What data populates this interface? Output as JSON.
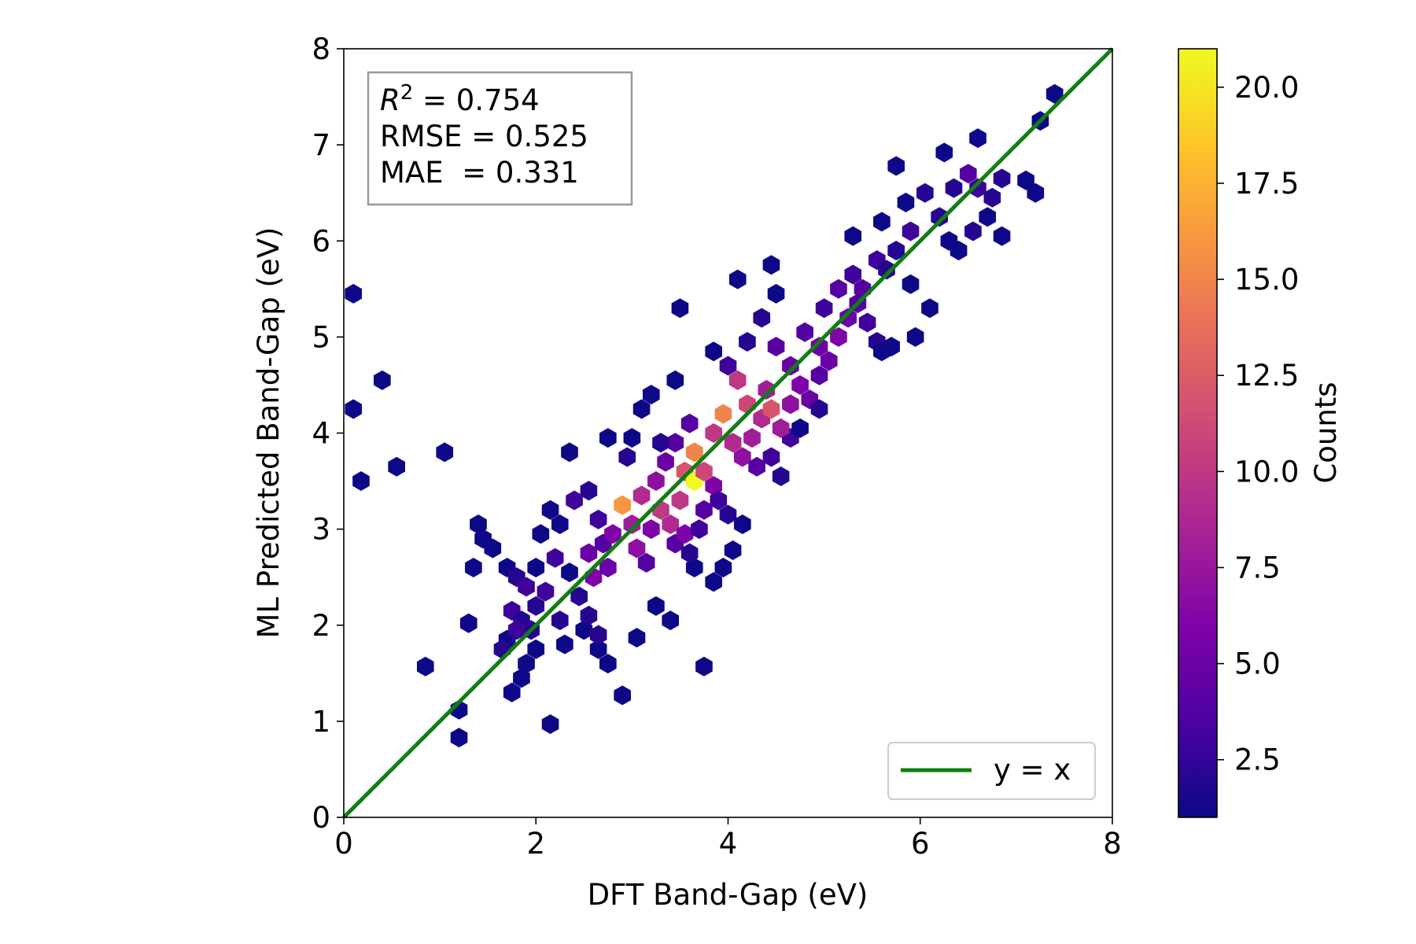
{
  "chart_data": {
    "type": "hexbin",
    "xlabel": "DFT Band-Gap (eV)",
    "ylabel": "ML Predicted Band-Gap (eV)",
    "xlim": [
      0,
      8
    ],
    "ylim": [
      0,
      8
    ],
    "xticks": [
      "0",
      "2",
      "4",
      "6",
      "8"
    ],
    "yticks": [
      "0",
      "1",
      "2",
      "3",
      "4",
      "5",
      "6",
      "7",
      "8"
    ],
    "stats": {
      "r2_symbol": "R",
      "r2_exp": "2",
      "r2_value": " = 0.754",
      "rmse": "RMSE = 0.525",
      "mae": "MAE  = 0.331"
    },
    "legend": {
      "label": "y = x",
      "color": "#0f7f10",
      "placement": "lower-right"
    },
    "reference_line": {
      "from": [
        0,
        0
      ],
      "to": [
        8,
        8
      ]
    },
    "colorbar": {
      "label": "Counts",
      "min": 1,
      "max": 21,
      "ticks": [
        "2.5",
        "5.0",
        "7.5",
        "10.0",
        "12.5",
        "15.0",
        "17.5",
        "20.0"
      ],
      "tick_values": [
        2.5,
        5.0,
        7.5,
        10.0,
        12.5,
        15.0,
        17.5,
        20.0
      ],
      "colormap": "plasma"
    },
    "hexbins": [
      [
        0.1,
        5.45,
        1
      ],
      [
        0.1,
        4.25,
        1
      ],
      [
        0.18,
        3.5,
        1
      ],
      [
        0.4,
        4.55,
        1
      ],
      [
        0.55,
        3.65,
        1
      ],
      [
        0.85,
        1.57,
        1
      ],
      [
        1.05,
        3.8,
        1
      ],
      [
        1.2,
        1.12,
        1
      ],
      [
        1.2,
        0.83,
        1
      ],
      [
        2.15,
        0.97,
        1
      ],
      [
        1.3,
        2.02,
        1
      ],
      [
        1.35,
        2.6,
        1
      ],
      [
        1.4,
        3.05,
        1
      ],
      [
        1.45,
        2.9,
        1
      ],
      [
        1.55,
        2.8,
        1
      ],
      [
        1.7,
        2.6,
        1
      ],
      [
        1.8,
        2.5,
        2
      ],
      [
        1.9,
        2.4,
        3
      ],
      [
        2.0,
        2.2,
        2
      ],
      [
        1.75,
        2.15,
        3
      ],
      [
        1.85,
        2.05,
        2
      ],
      [
        1.95,
        1.95,
        2
      ],
      [
        1.7,
        1.85,
        1
      ],
      [
        1.75,
        1.3,
        1
      ],
      [
        1.85,
        1.45,
        1
      ],
      [
        1.9,
        1.6,
        1
      ],
      [
        2.0,
        2.6,
        1
      ],
      [
        2.05,
        2.95,
        1
      ],
      [
        2.15,
        3.2,
        1
      ],
      [
        2.25,
        3.05,
        1
      ],
      [
        2.35,
        2.55,
        1
      ],
      [
        2.45,
        2.3,
        2
      ],
      [
        2.5,
        1.95,
        1
      ],
      [
        2.65,
        1.75,
        1
      ],
      [
        2.75,
        1.6,
        1
      ],
      [
        2.9,
        1.27,
        1
      ],
      [
        3.05,
        1.87,
        1
      ],
      [
        3.75,
        1.57,
        1
      ],
      [
        3.85,
        2.45,
        1
      ],
      [
        4.05,
        2.78,
        1
      ],
      [
        3.65,
        2.6,
        1
      ],
      [
        3.25,
        2.2,
        1
      ],
      [
        3.4,
        2.05,
        1
      ],
      [
        2.35,
        3.8,
        1
      ],
      [
        2.55,
        3.4,
        2
      ],
      [
        2.65,
        3.1,
        3
      ],
      [
        2.7,
        2.85,
        4
      ],
      [
        2.55,
        2.75,
        5
      ],
      [
        2.6,
        2.5,
        6
      ],
      [
        2.75,
        2.6,
        5
      ],
      [
        2.8,
        2.95,
        6
      ],
      [
        2.9,
        3.25,
        16
      ],
      [
        3.0,
        3.05,
        8
      ],
      [
        3.05,
        2.8,
        7
      ],
      [
        3.15,
        2.65,
        4
      ],
      [
        3.2,
        3.0,
        6
      ],
      [
        3.1,
        3.35,
        9
      ],
      [
        3.25,
        3.5,
        7
      ],
      [
        3.3,
        3.2,
        10
      ],
      [
        3.4,
        3.05,
        9
      ],
      [
        3.5,
        3.3,
        10
      ],
      [
        3.45,
        2.85,
        4
      ],
      [
        3.55,
        2.95,
        6
      ],
      [
        3.35,
        3.7,
        5
      ],
      [
        3.45,
        3.9,
        4
      ],
      [
        3.55,
        3.6,
        12
      ],
      [
        3.65,
        3.5,
        21
      ],
      [
        3.65,
        3.8,
        15
      ],
      [
        3.75,
        3.6,
        11
      ],
      [
        3.85,
        3.45,
        6
      ],
      [
        3.75,
        3.2,
        4
      ],
      [
        3.9,
        3.3,
        3
      ],
      [
        4.0,
        3.15,
        2
      ],
      [
        4.15,
        3.05,
        1
      ],
      [
        3.85,
        4.0,
        10
      ],
      [
        3.95,
        4.2,
        15
      ],
      [
        4.05,
        3.9,
        9
      ],
      [
        4.15,
        3.75,
        7
      ],
      [
        4.25,
        3.95,
        8
      ],
      [
        4.35,
        4.15,
        9
      ],
      [
        4.45,
        4.25,
        12
      ],
      [
        4.4,
        4.45,
        8
      ],
      [
        4.2,
        4.3,
        11
      ],
      [
        4.1,
        4.55,
        10
      ],
      [
        4.3,
        3.65,
        4
      ],
      [
        4.45,
        3.75,
        3
      ],
      [
        4.55,
        3.55,
        2
      ],
      [
        4.65,
        3.95,
        3
      ],
      [
        4.55,
        4.05,
        8
      ],
      [
        4.65,
        4.3,
        7
      ],
      [
        4.75,
        4.5,
        6
      ],
      [
        4.85,
        4.35,
        5
      ],
      [
        4.95,
        4.6,
        4
      ],
      [
        4.65,
        4.7,
        5
      ],
      [
        4.5,
        4.9,
        4
      ],
      [
        4.8,
        5.05,
        4
      ],
      [
        4.95,
        4.9,
        5
      ],
      [
        5.05,
        4.75,
        5
      ],
      [
        5.15,
        5.0,
        6
      ],
      [
        5.25,
        5.2,
        5
      ],
      [
        5.35,
        5.35,
        4
      ],
      [
        5.45,
        5.15,
        3
      ],
      [
        5.55,
        4.95,
        2
      ],
      [
        5.0,
        5.3,
        3
      ],
      [
        5.15,
        5.5,
        4
      ],
      [
        5.3,
        5.65,
        3
      ],
      [
        5.4,
        5.5,
        4
      ],
      [
        5.55,
        5.8,
        3
      ],
      [
        5.65,
        5.7,
        2
      ],
      [
        5.75,
        5.9,
        2
      ],
      [
        5.9,
        6.1,
        3
      ],
      [
        5.85,
        6.4,
        1
      ],
      [
        6.05,
        6.5,
        2
      ],
      [
        6.2,
        6.25,
        2
      ],
      [
        6.35,
        6.55,
        2
      ],
      [
        6.5,
        6.7,
        4
      ],
      [
        6.6,
        6.55,
        3
      ],
      [
        6.75,
        6.45,
        2
      ],
      [
        6.85,
        6.65,
        2
      ],
      [
        6.3,
        6.0,
        1
      ],
      [
        6.4,
        5.9,
        1
      ],
      [
        6.55,
        6.1,
        2
      ],
      [
        6.7,
        6.25,
        1
      ],
      [
        6.85,
        6.05,
        1
      ],
      [
        6.25,
        6.92,
        1
      ],
      [
        6.6,
        7.07,
        1
      ],
      [
        5.75,
        6.78,
        1
      ],
      [
        7.1,
        6.63,
        1
      ],
      [
        7.2,
        6.5,
        1
      ],
      [
        7.25,
        7.25,
        1
      ],
      [
        7.4,
        7.53,
        1
      ],
      [
        5.3,
        6.05,
        1
      ],
      [
        5.6,
        6.2,
        1
      ],
      [
        4.1,
        5.6,
        1
      ],
      [
        4.45,
        5.75,
        1
      ],
      [
        3.5,
        5.3,
        1
      ],
      [
        3.45,
        4.55,
        1
      ],
      [
        3.2,
        4.4,
        1
      ],
      [
        3.1,
        4.25,
        1
      ],
      [
        3.85,
        4.85,
        1
      ],
      [
        4.2,
        4.95,
        2
      ],
      [
        4.35,
        5.2,
        2
      ],
      [
        4.5,
        5.45,
        1
      ],
      [
        4.0,
        4.7,
        3
      ],
      [
        3.6,
        4.1,
        4
      ],
      [
        3.3,
        3.9,
        2
      ],
      [
        2.75,
        3.95,
        1
      ],
      [
        2.95,
        3.75,
        2
      ],
      [
        3.0,
        3.95,
        1
      ],
      [
        2.4,
        3.3,
        3
      ],
      [
        2.2,
        2.7,
        3
      ],
      [
        2.1,
        2.35,
        3
      ],
      [
        2.25,
        2.05,
        2
      ],
      [
        2.3,
        1.8,
        1
      ],
      [
        2.0,
        1.75,
        1
      ],
      [
        5.9,
        5.55,
        1
      ],
      [
        6.1,
        5.3,
        1
      ],
      [
        5.95,
        5.0,
        1
      ],
      [
        5.7,
        4.9,
        1
      ],
      [
        5.6,
        4.85,
        1
      ],
      [
        4.95,
        4.25,
        2
      ],
      [
        4.75,
        4.05,
        1
      ],
      [
        3.7,
        3.0,
        3
      ],
      [
        3.6,
        2.75,
        2
      ],
      [
        3.95,
        2.6,
        1
      ],
      [
        1.65,
        1.75,
        2
      ],
      [
        1.8,
        1.95,
        3
      ],
      [
        2.55,
        2.1,
        2
      ],
      [
        2.65,
        1.9,
        2
      ]
    ]
  }
}
